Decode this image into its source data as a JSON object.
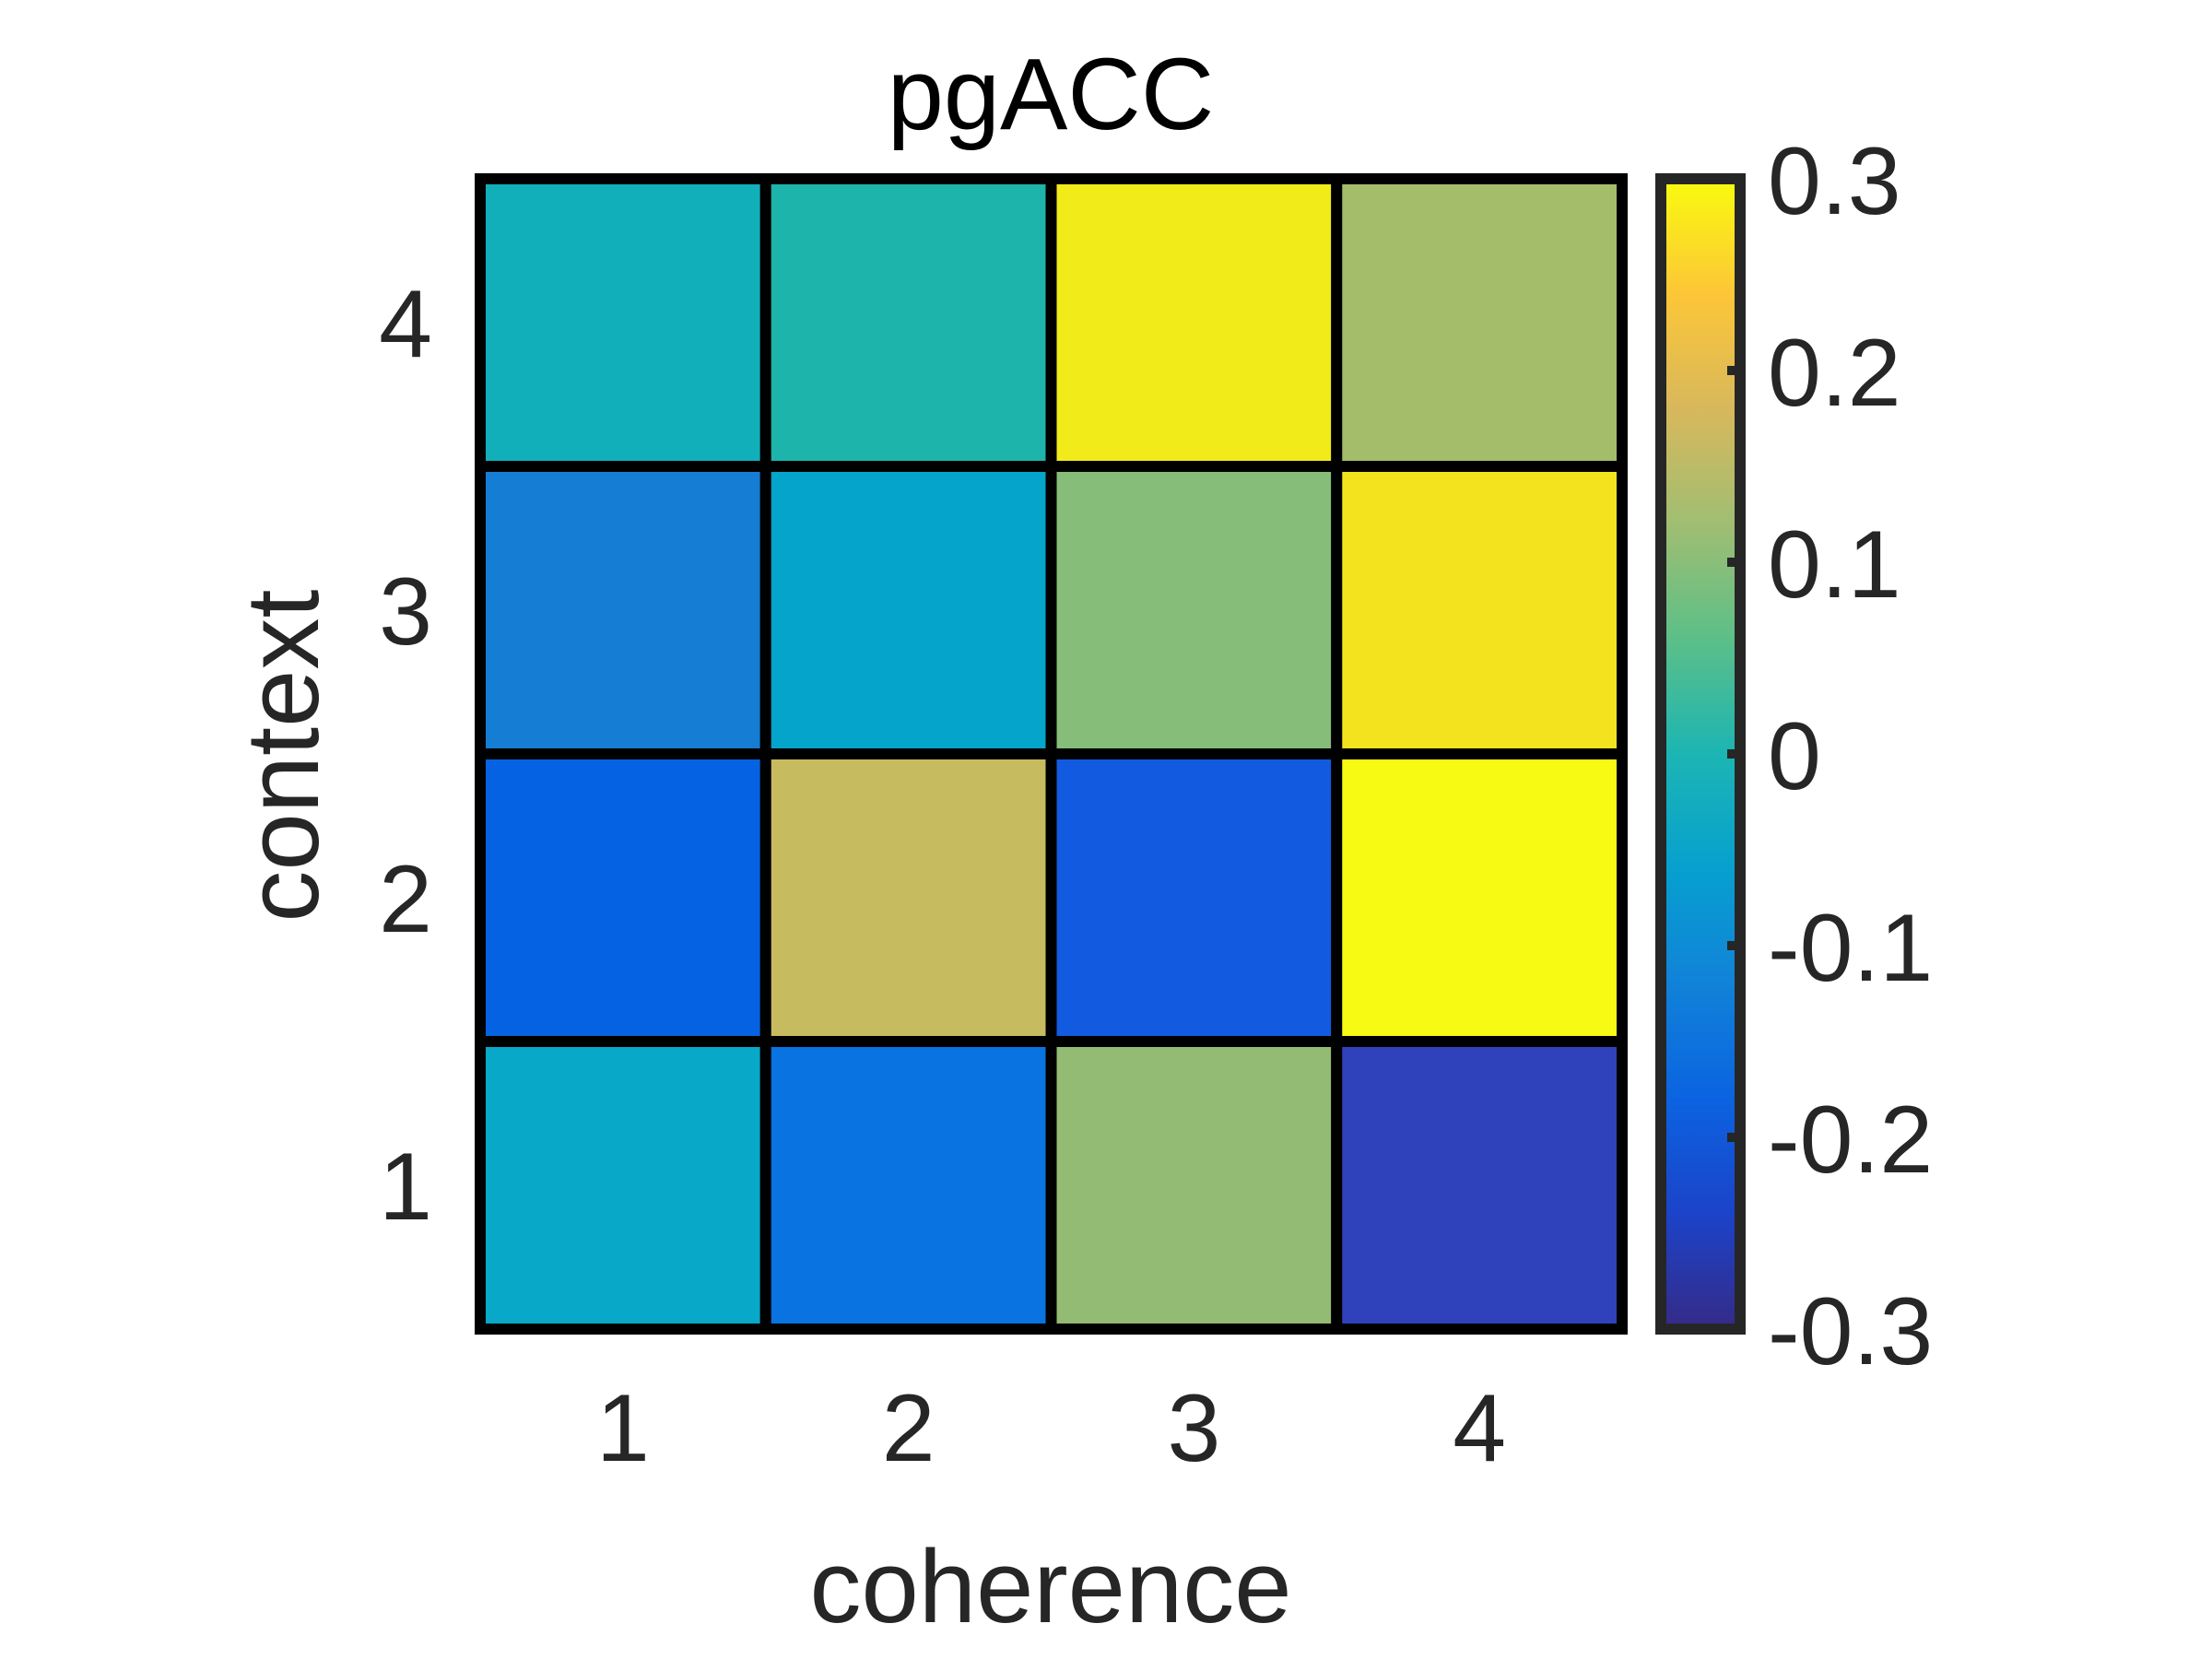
{
  "chart_data": {
    "type": "heatmap",
    "title": "pgACC",
    "xlabel": "coherence",
    "ylabel": "context",
    "x_categories": [
      "1",
      "2",
      "3",
      "4"
    ],
    "y_categories": [
      "1",
      "2",
      "3",
      "4"
    ],
    "values": [
      [
        -0.08,
        -0.18,
        0.1,
        -0.28
      ],
      [
        -0.21,
        0.17,
        -0.22,
        0.32
      ],
      [
        -0.16,
        -0.08,
        0.08,
        0.29
      ],
      [
        -0.06,
        -0.03,
        0.31,
        0.14
      ]
    ],
    "colorbar": {
      "range": [
        -0.3,
        0.3
      ],
      "ticks": [
        -0.3,
        -0.2,
        -0.1,
        0,
        0.1,
        0.2,
        0.3
      ],
      "tick_labels": [
        "-0.3",
        "-0.2",
        "-0.1",
        "0",
        "0.1",
        "0.2",
        "0.3"
      ],
      "colormap": "parula"
    },
    "cell_colors": [
      [
        "#07a8c8",
        "#0873e1",
        "#93bb74",
        "#3042bb"
      ],
      [
        "#0563e3",
        "#c7bb5f",
        "#125be1",
        "#f7fb13"
      ],
      [
        "#157dd4",
        "#05a4cb",
        "#86bd78",
        "#f2e31e"
      ],
      [
        "#11afba",
        "#1db4ac",
        "#f2eb1a",
        "#a3bd6a"
      ]
    ],
    "grid": true
  }
}
